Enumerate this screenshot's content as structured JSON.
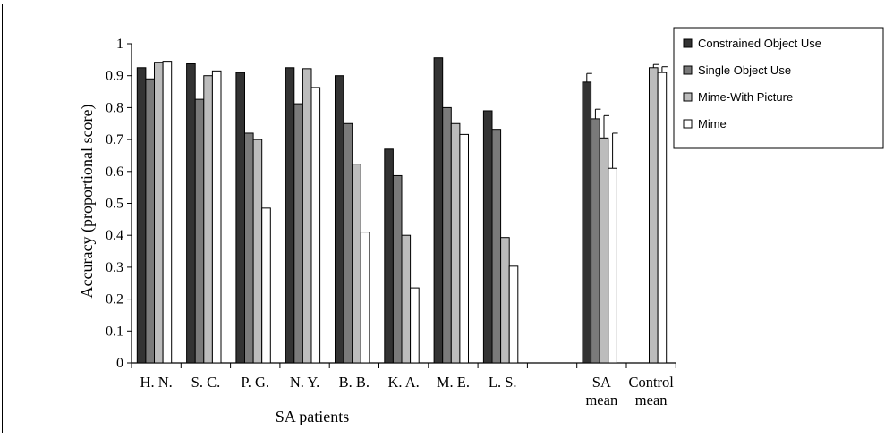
{
  "chart_data": {
    "type": "bar",
    "ylabel": "Accuracy (proportional score)",
    "xlabel": "SA patients",
    "ylim": [
      0,
      1
    ],
    "ytick_step": 0.1,
    "yticks": [
      "0",
      "0.1",
      "0.2",
      "0.3",
      "0.4",
      "0.5",
      "0.6",
      "0.7",
      "0.8",
      "0.9",
      "1"
    ],
    "categories": [
      "H. N.",
      "S. C.",
      "P. G.",
      "N. Y.",
      "B. B.",
      "K. A.",
      "M. E.",
      "L. S.",
      "",
      "SA mean",
      "Control mean"
    ],
    "category_lines": [
      [
        "H. N."
      ],
      [
        "S. C."
      ],
      [
        "P. G."
      ],
      [
        "N. Y."
      ],
      [
        "B. B."
      ],
      [
        "K. A."
      ],
      [
        "M. E."
      ],
      [
        "L. S."
      ],
      [
        ""
      ],
      [
        "SA",
        "mean"
      ],
      [
        "Control",
        "mean"
      ]
    ],
    "series": [
      {
        "name": "Constrained Object Use",
        "color": "#333333",
        "values": [
          0.925,
          0.937,
          0.91,
          0.925,
          0.9,
          0.67,
          0.956,
          0.79,
          null,
          0.88,
          null
        ]
      },
      {
        "name": "Single Object Use",
        "color": "#7a7a7a",
        "values": [
          0.89,
          0.826,
          0.72,
          0.812,
          0.75,
          0.587,
          0.8,
          0.732,
          null,
          0.765,
          null
        ]
      },
      {
        "name": "Mime-With Picture",
        "color": "#bcbcbc",
        "values": [
          0.942,
          0.9,
          0.7,
          0.922,
          0.623,
          0.4,
          0.75,
          0.393,
          null,
          0.705,
          0.925
        ]
      },
      {
        "name": "Mime",
        "color": "#ffffff",
        "values": [
          0.945,
          0.915,
          0.485,
          0.863,
          0.41,
          0.235,
          0.716,
          0.303,
          null,
          0.61,
          0.91
        ]
      }
    ],
    "error_bars": {
      "SA mean": [
        0.027,
        0.03,
        0.07,
        0.11
      ],
      "Control mean": [
        null,
        null,
        0.01,
        0.018
      ]
    },
    "legend_position": "top-right",
    "grid": false
  }
}
